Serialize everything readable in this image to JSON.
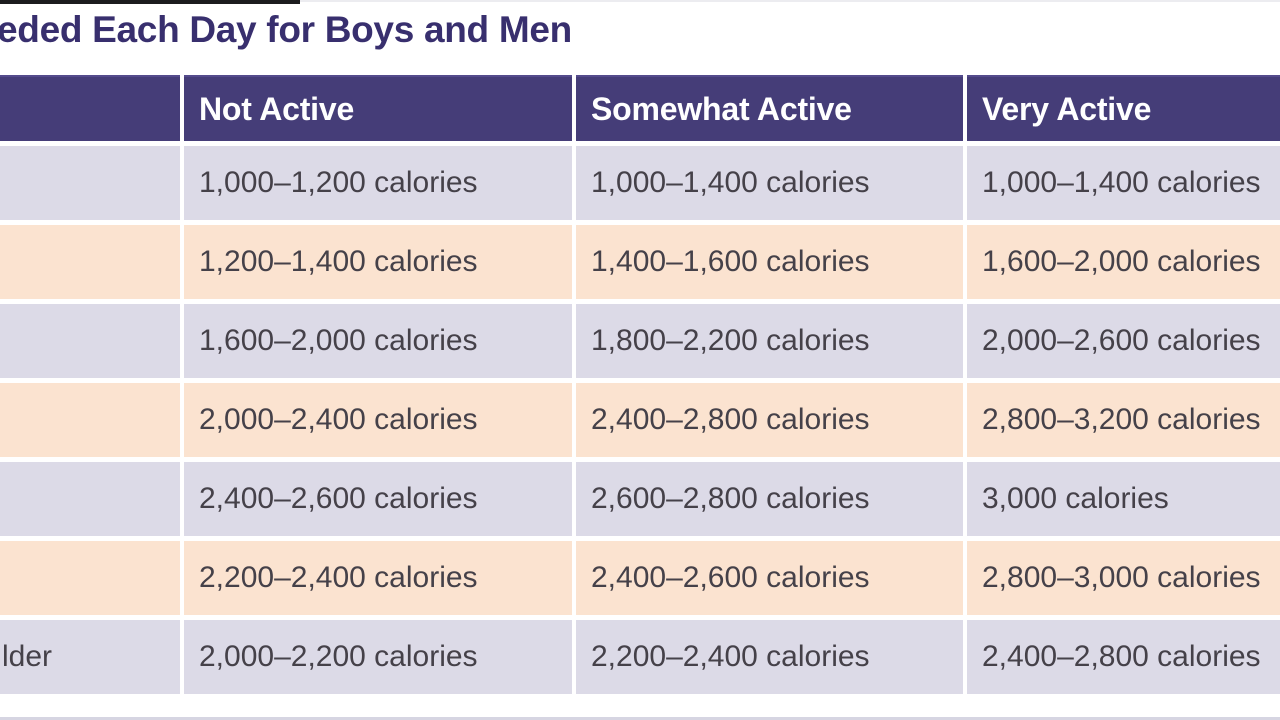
{
  "page": {
    "title_visible": "eded Each Day for Boys and Men"
  },
  "chart_data": {
    "type": "table",
    "title": "eded Each Day for Boys and Men",
    "columns": [
      "",
      "Not Active",
      "Somewhat Active",
      "Very Active"
    ],
    "rows": [
      [
        "",
        "1,000–1,200 calories",
        "1,000–1,400 calories",
        "1,000–1,400 calories"
      ],
      [
        "",
        "1,200–1,400 calories",
        "1,400–1,600 calories",
        "1,600–2,000 calories"
      ],
      [
        "",
        "1,600–2,000 calories",
        "1,800–2,200 calories",
        "2,000–2,600 calories"
      ],
      [
        "",
        "2,000–2,400 calories",
        "2,400–2,800 calories",
        "2,800–3,200 calories"
      ],
      [
        "",
        "2,400–2,600 calories",
        "2,600–2,800 calories",
        "3,000 calories"
      ],
      [
        "",
        "2,200–2,400 calories",
        "2,400–2,600 calories",
        "2,800–3,000 calories"
      ],
      [
        "lder",
        "2,000–2,200 calories",
        "2,200–2,400 calories",
        "2,400–2,800 calories"
      ]
    ],
    "layout": {
      "row_stripe_colors": [
        "lavender",
        "peach"
      ],
      "grid": "white gutters between cells",
      "left_column_and_title_cropped": true
    }
  },
  "colors": {
    "header_bg": "#453d78",
    "row_lavender": "#dcdae7",
    "row_peach": "#fbe3d0",
    "title_text": "#382f6e",
    "cell_text": "#454149",
    "header_text": "#ffffff",
    "divider": "#ffffff",
    "bottom_strip": "#d6d5e2",
    "top_bar": "#1c1c1e"
  }
}
